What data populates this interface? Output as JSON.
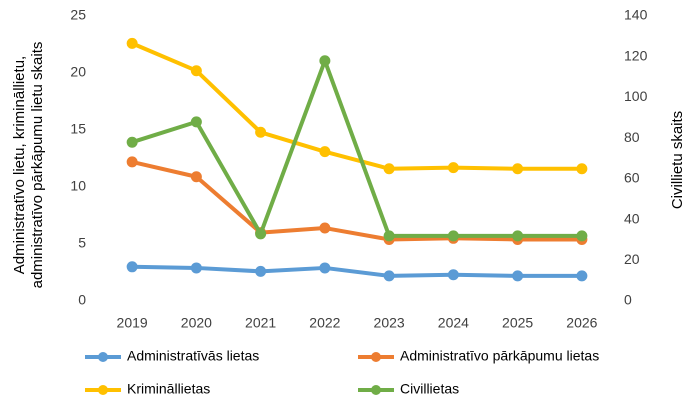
{
  "chart_data": {
    "type": "line",
    "categories": [
      "2019",
      "2020",
      "2021",
      "2022",
      "2023",
      "2024",
      "2025",
      "2026"
    ],
    "series": [
      {
        "name": "Administratīvās lietas",
        "color": "#5b9bd5",
        "values": [
          3.0,
          2.9,
          2.6,
          2.9,
          2.2,
          2.3,
          2.2,
          2.2
        ]
      },
      {
        "name": "Administratīvo pārkāpumu lietas",
        "color": "#ed7d31",
        "values": [
          12.2,
          10.9,
          6.0,
          6.4,
          5.4,
          5.5,
          5.4,
          5.4
        ]
      },
      {
        "name": "Krimināllietas",
        "color": "#ffc000",
        "values": [
          22.6,
          20.2,
          14.8,
          13.1,
          11.6,
          11.7,
          11.6,
          11.6
        ]
      },
      {
        "name": "Civillietas",
        "color": "#70ad47",
        "axis": "y2",
        "values": [
          78,
          88,
          33,
          118,
          32,
          32,
          32,
          32
        ]
      }
    ],
    "ylabel": [
      "Administratīvo lietu, krimināllietu,",
      "administratīvo pārkāpumu lietu skaits"
    ],
    "y2label": "Civillietu skaits",
    "ylim": [
      0,
      25
    ],
    "yticks": [
      0,
      5,
      10,
      15,
      20,
      25
    ],
    "y2lim": [
      0,
      140
    ],
    "y2ticks": [
      0,
      20,
      40,
      60,
      80,
      100,
      120,
      140
    ],
    "grid": false
  }
}
